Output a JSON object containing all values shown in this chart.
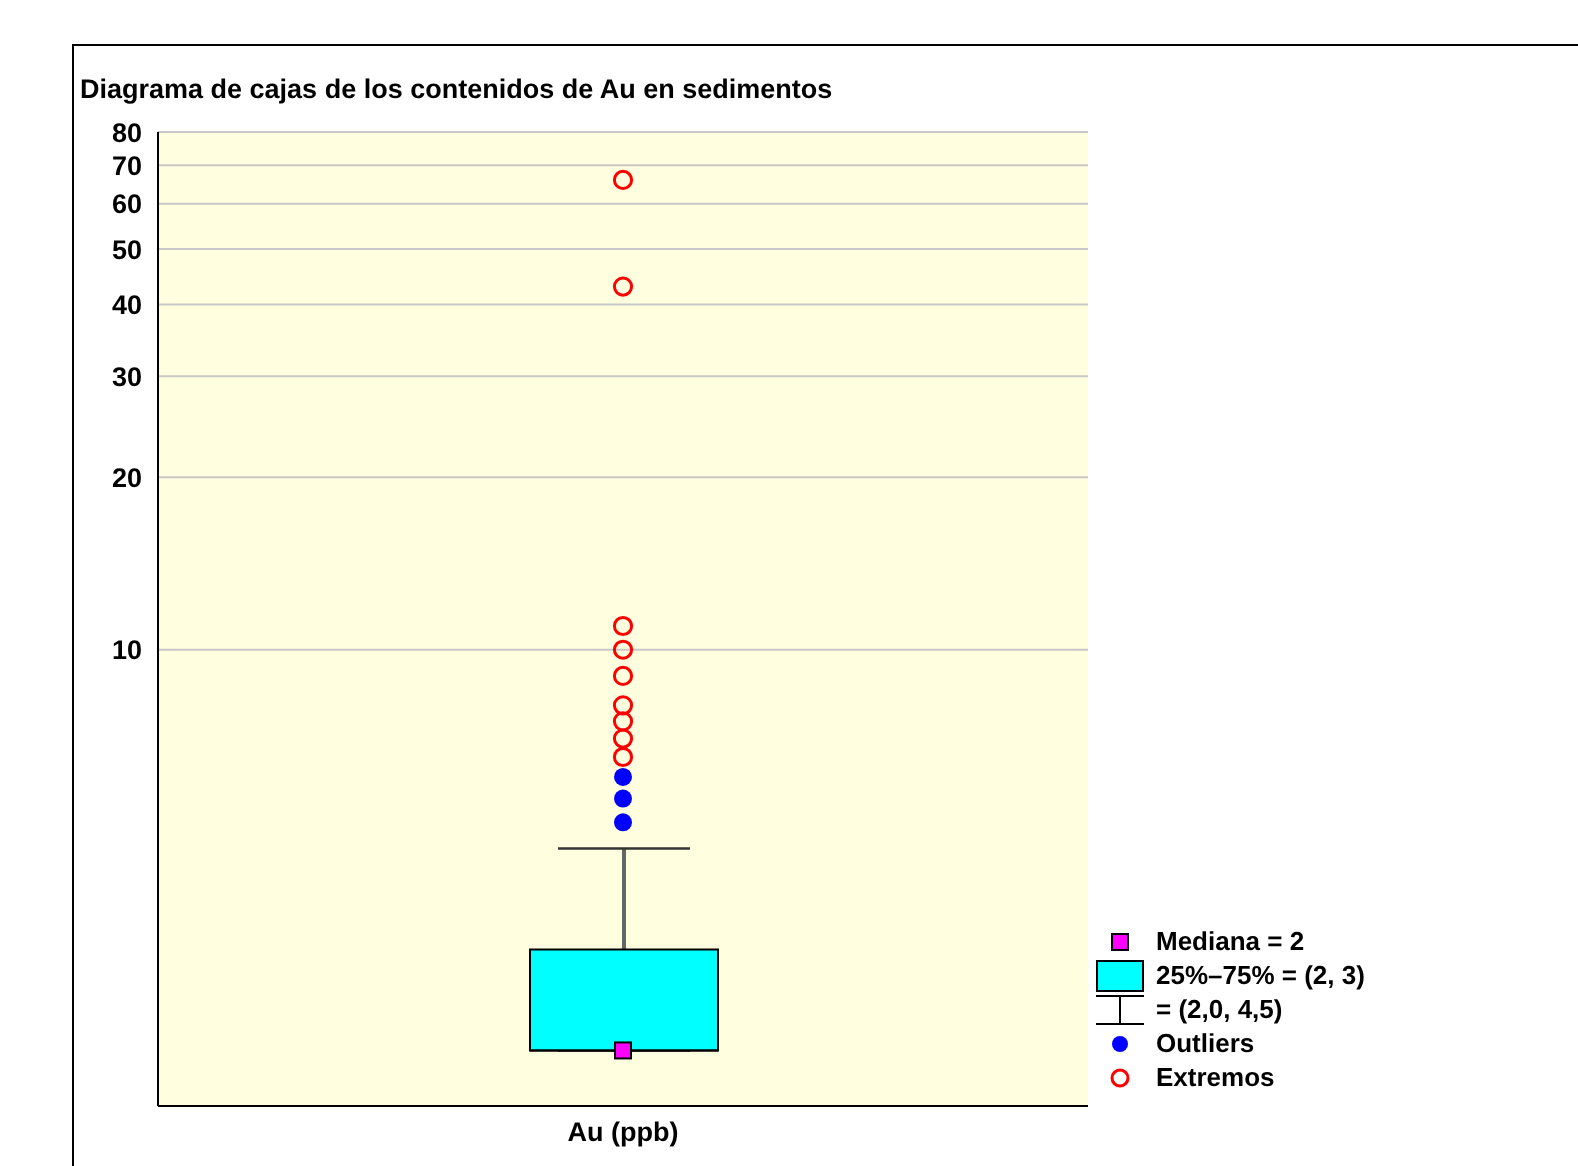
{
  "chart_data": {
    "type": "box",
    "title": "Diagrama de cajas de los contenidos de Au en sedimentos",
    "categories": [
      "Au (ppb)"
    ],
    "log": "y",
    "ylim": [
      1.6,
      80
    ],
    "yticks": [
      10,
      20,
      30,
      40,
      50,
      60,
      70,
      80
    ],
    "grid": "y",
    "legend": "right",
    "annotations": [
      "= (2,0, 4,5)"
    ],
    "series": [
      {
        "type": "scatter",
        "name": "Mediana = 2",
        "color": "#ff00ff",
        "marker": "square",
        "x": [
          "Au (ppb)"
        ],
        "values": [
          2
        ]
      },
      {
        "name": "25%–75% = (2, 3)",
        "color": "#00ffff",
        "boxes": [
          {
            "low": 2,
            "q1": 2,
            "median": 2,
            "q3": 3,
            "high": 4.5
          }
        ]
      },
      {
        "type": "scatter",
        "name": "Outliers",
        "color": "#0000ff",
        "marker": "circle",
        "x": [
          "Au (ppb)",
          "Au (ppb)",
          "Au (ppb)"
        ],
        "values": [
          5,
          5.5,
          6
        ]
      },
      {
        "type": "scatter",
        "name": "Extremos",
        "color": "#ff0000",
        "marker": "circle",
        "x": [
          "Au (ppb)",
          "Au (ppb)",
          "Au (ppb)",
          "Au (ppb)",
          "Au (ppb)",
          "Au (ppb)",
          "Au (ppb)",
          "Au (ppb)",
          "Au (ppb)"
        ],
        "values": [
          6.5,
          7,
          7.5,
          8,
          9,
          10,
          11,
          43,
          66
        ]
      }
    ]
  }
}
